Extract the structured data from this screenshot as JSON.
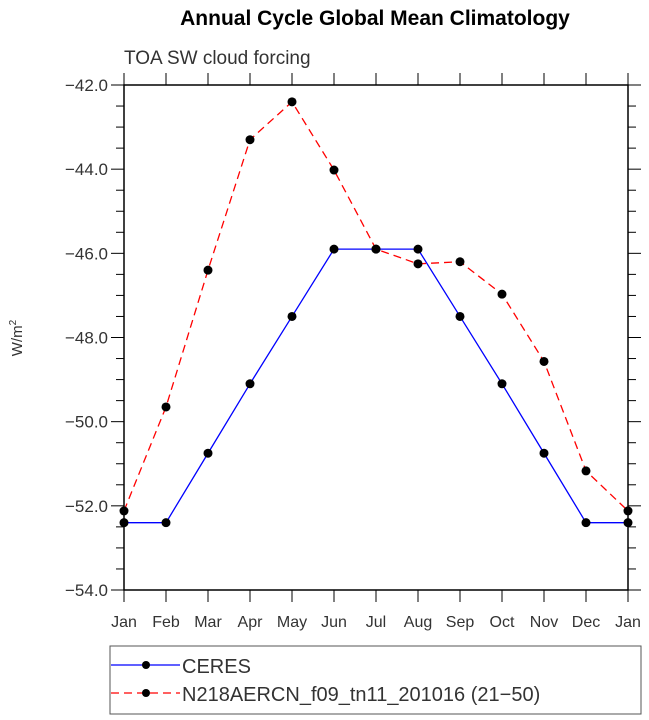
{
  "chart_data": {
    "type": "line",
    "title": "Annual Cycle Global Mean Climatology",
    "subtitle": "TOA SW cloud forcing",
    "xlabel": "",
    "ylabel": "W/m",
    "ylabel_sup": "2",
    "categories": [
      "Jan",
      "Feb",
      "Mar",
      "Apr",
      "May",
      "Jun",
      "Jul",
      "Aug",
      "Sep",
      "Oct",
      "Nov",
      "Dec",
      "Jan"
    ],
    "ylim": [
      -54.0,
      -42.0
    ],
    "yticks": [
      -42.0,
      -44.0,
      -46.0,
      -48.0,
      -50.0,
      -52.0,
      -54.0
    ],
    "ytick_labels": [
      "−42.0",
      "−44.0",
      "−46.0",
      "−48.0",
      "−50.0",
      "−52.0",
      "−54.0"
    ],
    "grid": false,
    "legend_placement": "bottom",
    "series": [
      {
        "name": "CERES",
        "color": "#0000ff",
        "dash": "solid",
        "values": [
          -52.4,
          -52.4,
          -50.75,
          -49.1,
          -47.5,
          -45.9,
          -45.9,
          -45.9,
          -47.5,
          -49.1,
          -50.75,
          -52.4,
          -52.4
        ]
      },
      {
        "name": "N218AERCN_f09_tn11_201016 (21−50)",
        "color": "#ff0000",
        "dash": "dashed",
        "values": [
          -52.12,
          -49.65,
          -46.4,
          -43.3,
          -42.4,
          -44.02,
          -45.9,
          -46.25,
          -46.2,
          -46.97,
          -48.57,
          -51.17,
          -52.12
        ]
      }
    ]
  }
}
